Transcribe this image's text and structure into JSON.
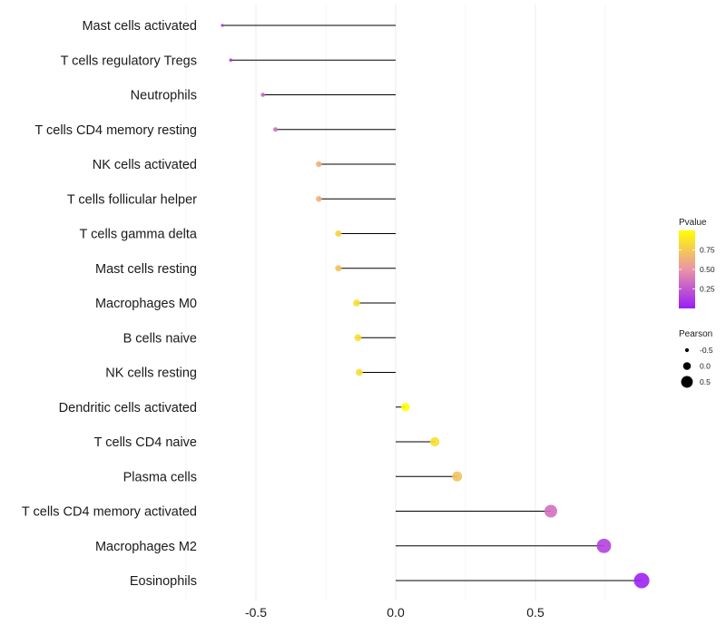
{
  "chart_data": {
    "type": "lollipop",
    "xlabel": "",
    "ylabel": "",
    "xlim": [
      -0.7,
      0.92
    ],
    "x_ticks": [
      -0.5,
      0.0,
      0.5
    ],
    "x_tick_labels": [
      "-0.5",
      "0.0",
      "0.5"
    ],
    "grid": "vertical",
    "categories": [
      "Mast cells activated",
      "T cells regulatory  Tregs",
      "Neutrophils",
      "T cells CD4 memory resting",
      "NK cells activated",
      "T cells follicular helper",
      "T cells gamma delta",
      "Mast cells resting",
      "Macrophages M0",
      "B cells naive",
      "NK cells resting",
      "Dendritic cells activated",
      "T cells CD4 naive",
      "Plasma cells",
      "T cells CD4 memory activated",
      "Macrophages M2",
      "Eosinophils"
    ],
    "pearson": [
      -0.62,
      -0.59,
      -0.475,
      -0.43,
      -0.275,
      -0.275,
      -0.205,
      -0.205,
      -0.14,
      -0.135,
      -0.13,
      0.035,
      0.14,
      0.22,
      0.555,
      0.745,
      0.88
    ],
    "pvalue": [
      0.1,
      0.08,
      0.3,
      0.35,
      0.65,
      0.65,
      0.8,
      0.72,
      0.85,
      0.85,
      0.85,
      1.0,
      0.85,
      0.72,
      0.35,
      0.15,
      0.02
    ],
    "legend_color": {
      "title": "Pvalue",
      "ticks": [
        0.75,
        0.5,
        0.25
      ],
      "tick_labels": [
        "0.75",
        "0.50",
        "0.25"
      ],
      "range": [
        0.0,
        1.0
      ],
      "low_color": "#9a1df5",
      "mid_color": "#e994a8",
      "high_color": "#ffff00"
    },
    "legend_size": {
      "title": "Pearson",
      "values": [
        -0.5,
        0.0,
        0.5
      ],
      "labels": [
        "-0.5",
        "0.0",
        "0.5"
      ]
    },
    "legend_position": "right"
  }
}
